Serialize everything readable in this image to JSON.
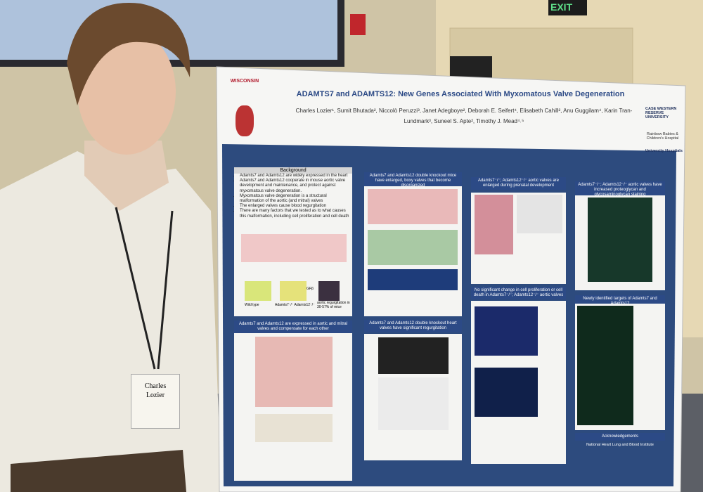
{
  "signs": {
    "exit": "EXIT"
  },
  "badge": {
    "first_name": "Charles",
    "last_name": "Lozier"
  },
  "poster": {
    "logos": {
      "left": "WISCONSIN",
      "right_top": "CASE WESTERN RESERVE UNIVERSITY",
      "right_middle": "Rainbow Babies & Children's Hospital",
      "right_bottom": "University Hospitals"
    },
    "title": "ADAMTS7 and ADAMTS12: New Genes Associated With Myxomatous Valve Degeneration",
    "authors": "Charles Lozier¹, Sumit Bhutada², Niccolò Peruzzi³, Janet Adegboye², Deborah E. Seifert⁴, Elisabeth Cahill², Anu Guggilam⁴, Karin Tran-Lundmark³, Suneel S. Apte², Timothy J. Mead⁴˒⁵",
    "background": {
      "heading": "Background",
      "bullets": [
        "Adamts7 and Adamts12 are widely expressed in the heart",
        "Adamts7 and Adamts12 cooperate in mouse aortic valve development and maintenance, and protect against myxomatous valve degeneration.",
        "Myxomatous valve degeneration is a structural malformation of the aortic (and mitral) valves",
        "The enlarged valves cause blood regurgitation",
        "There are many factors that we tested as to what causes this malformation, including cell proliferation and cell death"
      ],
      "figure_labels": [
        "Wild type",
        "Adamts7⁻/⁻ Adamts12⁻/⁻",
        "aortic regurgitation in 30-57% of mice",
        "TGFβ"
      ]
    },
    "sections": [
      "Adamts7 and Adamts12 are expressed in aortic and mitral valves and compensate for each other",
      "Adamts7 and Adamts12 double knockout mice have enlarged, boxy valves that become disorganized",
      "Adamts7 and Adamts12 double knockout heart valves have significant regurgitation",
      "Adamts7⁻/⁻; Adamts12⁻/⁻ aortic valves are enlarged during prenatal development",
      "No significant change in cell proliferation or cell death in Adamts7⁻/⁻; Adamts12⁻/⁻ aortic valves",
      "Adamts7⁻/⁻; Adamts12⁻/⁻ aortic valves have increased proteoglycan and glycosaminoglycan staining",
      "Newly identified targets of Adamts7 and Adamts12"
    ],
    "acknowledgements": {
      "heading": "Acknowledgements",
      "text": "National Heart Lung and Blood Institute"
    }
  }
}
